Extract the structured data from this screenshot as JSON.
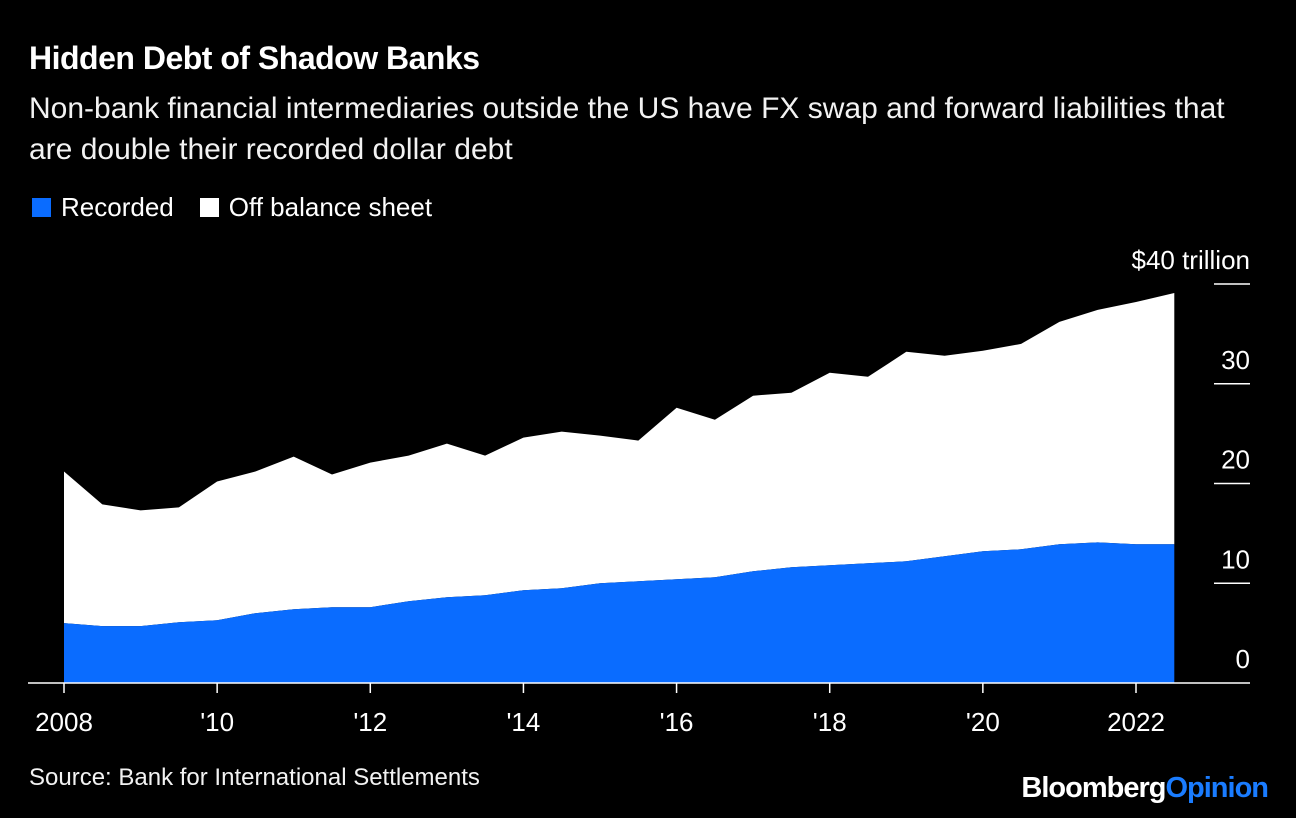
{
  "chart_data": {
    "type": "area",
    "stacked": true,
    "title": "Hidden Debt of Shadow Banks",
    "subtitle": "Non-bank financial intermediaries outside the US have FX swap and forward liabilities that are double their recorded dollar debt",
    "x": [
      2008.0,
      2008.5,
      2009.0,
      2009.5,
      2010.0,
      2010.5,
      2011.0,
      2011.5,
      2012.0,
      2012.5,
      2013.0,
      2013.5,
      2014.0,
      2014.5,
      2015.0,
      2015.5,
      2016.0,
      2016.5,
      2017.0,
      2017.5,
      2018.0,
      2018.5,
      2019.0,
      2019.5,
      2020.0,
      2020.5,
      2021.0,
      2021.5,
      2022.0,
      2022.5
    ],
    "series": [
      {
        "name": "Recorded",
        "color": "#0a6cff",
        "values": [
          6.0,
          5.7,
          5.7,
          6.1,
          6.3,
          7.0,
          7.4,
          7.6,
          7.6,
          8.2,
          8.6,
          8.8,
          9.3,
          9.5,
          10.0,
          10.2,
          10.4,
          10.6,
          11.2,
          11.6,
          11.8,
          12.0,
          12.2,
          12.7,
          13.2,
          13.4,
          13.9,
          14.1,
          13.9,
          13.9
        ]
      },
      {
        "name": "Off balance sheet",
        "color": "#ffffff",
        "values": [
          15.2,
          12.2,
          11.6,
          11.5,
          13.9,
          14.2,
          15.3,
          13.3,
          14.5,
          14.6,
          15.4,
          14.0,
          15.3,
          15.7,
          14.8,
          14.1,
          17.2,
          15.8,
          17.6,
          17.5,
          19.3,
          18.7,
          21.0,
          20.1,
          20.1,
          20.6,
          22.3,
          23.3,
          24.3,
          25.2
        ]
      }
    ],
    "total_values": [
      21.2,
      17.9,
      17.3,
      17.6,
      20.2,
      21.2,
      22.7,
      20.9,
      22.1,
      22.8,
      24.0,
      22.8,
      24.6,
      25.2,
      24.8,
      24.3,
      27.6,
      26.4,
      28.8,
      29.1,
      31.1,
      30.7,
      33.2,
      32.8,
      33.3,
      34.0,
      36.2,
      37.4,
      38.2,
      39.1
    ],
    "ylim": [
      0,
      40
    ],
    "yticks": [
      0,
      10,
      20,
      30,
      40
    ],
    "ytick_labels": [
      "0",
      "10",
      "20",
      "30",
      "$40 trillion"
    ],
    "xlim": [
      2008,
      2023.3
    ],
    "xticks": [
      2008,
      2010,
      2012,
      2014,
      2016,
      2018,
      2020,
      2022
    ],
    "xtick_labels": [
      "2008",
      "'10",
      "'12",
      "'14",
      "'16",
      "'18",
      "'20",
      "2022"
    ],
    "xlabel": "",
    "ylabel": "",
    "legend": [
      "Recorded",
      "Off balance sheet"
    ],
    "legend_position": "top-left"
  },
  "footer": {
    "source": "Source: Bank for International Settlements",
    "brand_part1": "Bloomberg",
    "brand_part2": "Opinion"
  },
  "colors": {
    "background": "#000000",
    "recorded": "#0a6cff",
    "off_balance": "#ffffff",
    "brand_accent": "#1a7cff"
  }
}
